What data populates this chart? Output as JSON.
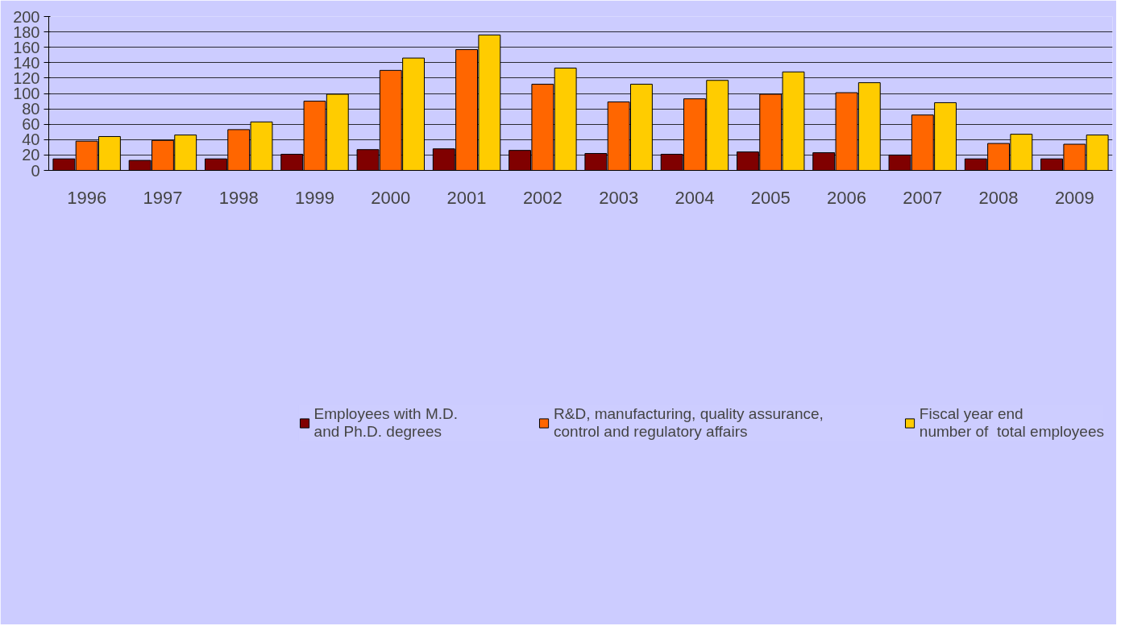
{
  "chart_data": {
    "type": "bar",
    "categories": [
      "1996",
      "1997",
      "1998",
      "1999",
      "2000",
      "2001",
      "2002",
      "2003",
      "2004",
      "2005",
      "2006",
      "2007",
      "2008",
      "2009"
    ],
    "series": [
      {
        "name": "Employees with M.D.\nand Ph.D. degrees",
        "color": "#800000",
        "values": [
          15,
          13,
          15,
          21,
          27,
          28,
          26,
          22,
          21,
          24,
          23,
          20,
          15,
          15
        ]
      },
      {
        "name": "R&D, manufacturing, quality assurance,\ncontrol and regulatory affairs",
        "color": "#ff6600",
        "values": [
          38,
          39,
          53,
          90,
          130,
          157,
          112,
          89,
          93,
          99,
          101,
          72,
          35,
          34
        ]
      },
      {
        "name": "Fiscal year end\nnumber of  total employees",
        "color": "#ffcc00",
        "values": [
          44,
          46,
          63,
          99,
          146,
          176,
          133,
          112,
          117,
          128,
          114,
          88,
          47,
          46
        ]
      }
    ],
    "ylim": [
      0,
      200
    ],
    "yticks": [
      0,
      20,
      40,
      60,
      80,
      100,
      120,
      140,
      160,
      180,
      200
    ],
    "grid": "y",
    "legend": "bottom"
  }
}
